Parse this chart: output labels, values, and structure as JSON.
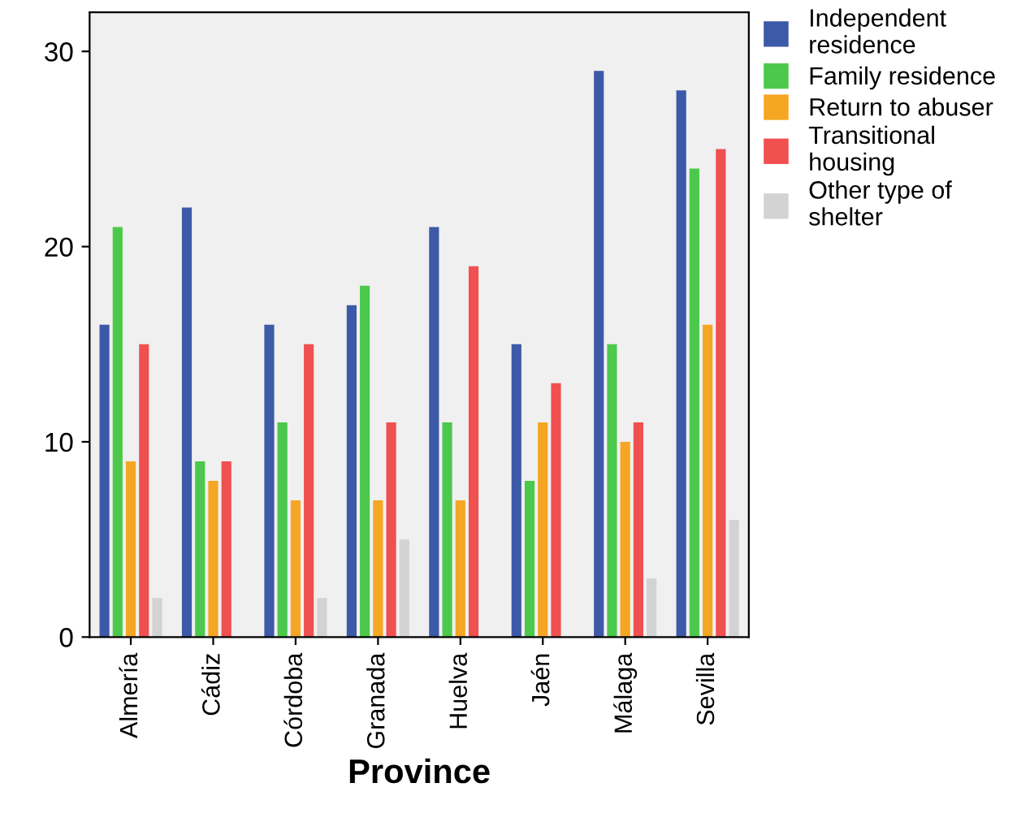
{
  "chart_data": {
    "type": "bar",
    "xlabel": "Province",
    "categories": [
      "Almería",
      "Cádiz",
      "Córdoba",
      "Granada",
      "Huelva",
      "Jaén",
      "Málaga",
      "Sevilla"
    ],
    "series": [
      {
        "name": "Independent residence",
        "color": "#3d5aa8",
        "values": [
          16,
          22,
          16,
          17,
          21,
          15,
          29,
          28
        ]
      },
      {
        "name": "Family residence",
        "color": "#4cc94c",
        "values": [
          21,
          9,
          11,
          18,
          11,
          8,
          15,
          24
        ]
      },
      {
        "name": "Return to abuser",
        "color": "#f5a623",
        "values": [
          9,
          8,
          7,
          7,
          7,
          11,
          10,
          16
        ]
      },
      {
        "name": "Transitional housing",
        "color": "#f05050",
        "values": [
          15,
          9,
          15,
          11,
          19,
          13,
          11,
          25
        ]
      },
      {
        "name": "Other type of shelter",
        "color": "#d3d3d3",
        "values": [
          2,
          0,
          2,
          5,
          0,
          0,
          3,
          6
        ]
      }
    ],
    "ylim": [
      0,
      32
    ],
    "yticks": [
      0,
      10,
      20,
      30
    ],
    "grid": false,
    "legend": "top right"
  }
}
